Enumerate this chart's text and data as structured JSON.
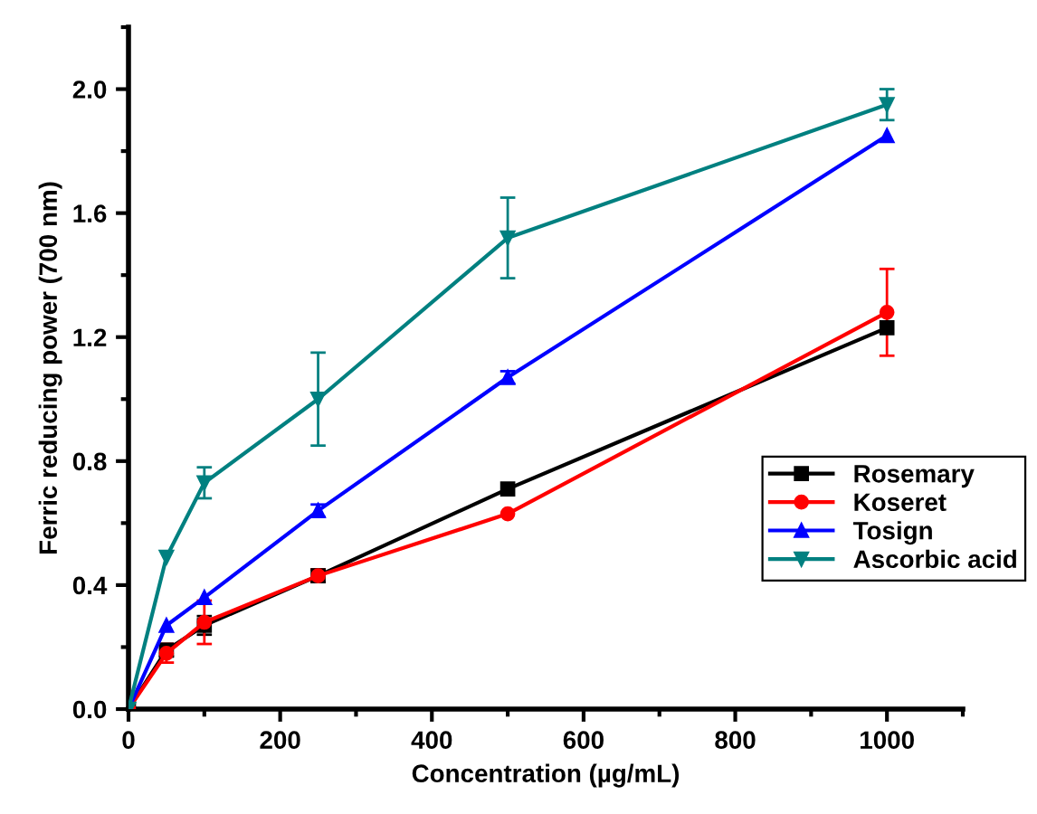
{
  "chart_data": {
    "type": "line",
    "xlabel": "Concentration (µg/mL)",
    "ylabel": "Ferric reducing power (700 nm)",
    "xlim": [
      0,
      1100
    ],
    "xticks": [
      0,
      200,
      400,
      600,
      800,
      1000
    ],
    "ylim": [
      0,
      2.2
    ],
    "yticks": [
      {
        "value": 0,
        "label": "0.0"
      },
      {
        "value": 0.4,
        "label": "0.4"
      },
      {
        "value": 0.8,
        "label": "0.8"
      },
      {
        "value": 1.2,
        "label": "1.2"
      },
      {
        "value": 1.6,
        "label": "1.6"
      },
      {
        "value": 2.0,
        "label": "2.0"
      }
    ],
    "legend": "bottom right",
    "grid": false,
    "line_style": "solid",
    "series": [
      {
        "name": "Rosemary",
        "color": "#000000",
        "marker": "square",
        "x": [
          0,
          50,
          100,
          250,
          500,
          1000
        ],
        "values": [
          0,
          0.19,
          0.27,
          0.43,
          0.71,
          1.23
        ],
        "errors": [
          null,
          0.02,
          0.03,
          0.02,
          null,
          null
        ]
      },
      {
        "name": "Koseret",
        "color": "#ff0000",
        "marker": "circle",
        "x": [
          0,
          50,
          100,
          250,
          500,
          1000
        ],
        "values": [
          0,
          0.18,
          0.28,
          0.43,
          0.63,
          1.28
        ],
        "errors": [
          null,
          0.03,
          0.07,
          0.02,
          null,
          0.14
        ]
      },
      {
        "name": "Tosign",
        "color": "#0000ff",
        "marker": "triangle",
        "x": [
          0,
          50,
          100,
          250,
          500,
          1000
        ],
        "values": [
          0,
          0.27,
          0.36,
          0.64,
          1.07,
          1.85
        ],
        "errors": [
          null,
          null,
          null,
          0.02,
          0.02,
          null
        ]
      },
      {
        "name": "Ascorbic acid",
        "color": "#008080",
        "marker": "triangle_down",
        "x": [
          0,
          50,
          100,
          250,
          500,
          1000
        ],
        "values": [
          0,
          0.49,
          0.73,
          1.0,
          1.52,
          1.95
        ],
        "errors": [
          null,
          null,
          0.05,
          0.15,
          0.13,
          0.05
        ]
      }
    ]
  }
}
